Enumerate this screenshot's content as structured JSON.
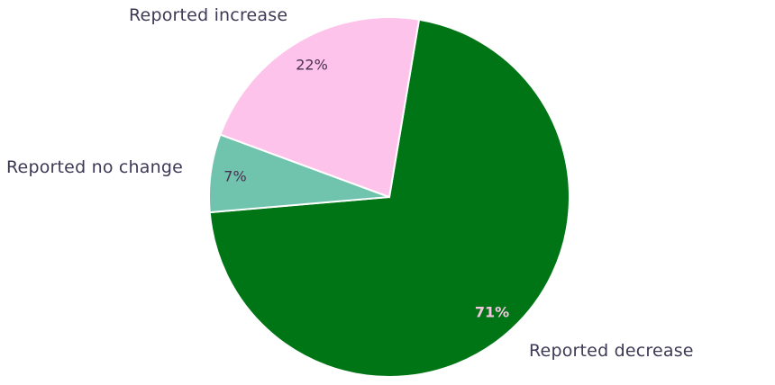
{
  "chart_data": {
    "type": "pie",
    "title": "",
    "start_angle_deg": 9.5,
    "direction": "clockwise",
    "center": [
      432,
      219
    ],
    "radius": 200,
    "slices": [
      {
        "label": "Reported decrease",
        "value": 71,
        "display": "71%",
        "color": "#007516",
        "text_color": "#f4c6e0"
      },
      {
        "label": "Reported no change",
        "value": 7,
        "display": "7%",
        "color": "#70c3ad",
        "text_color": "#4a3050"
      },
      {
        "label": "Reported increase",
        "value": 22,
        "display": "22%",
        "color": "#fdc3eb",
        "text_color": "#4a3050"
      }
    ],
    "legend": "none",
    "label_color": "#3d3a55"
  },
  "labels": {
    "decrease": "Reported decrease",
    "no_change": "Reported no change",
    "increase": "Reported increase"
  },
  "percentages": {
    "decrease": "71%",
    "no_change": "7%",
    "increase": "22%"
  }
}
